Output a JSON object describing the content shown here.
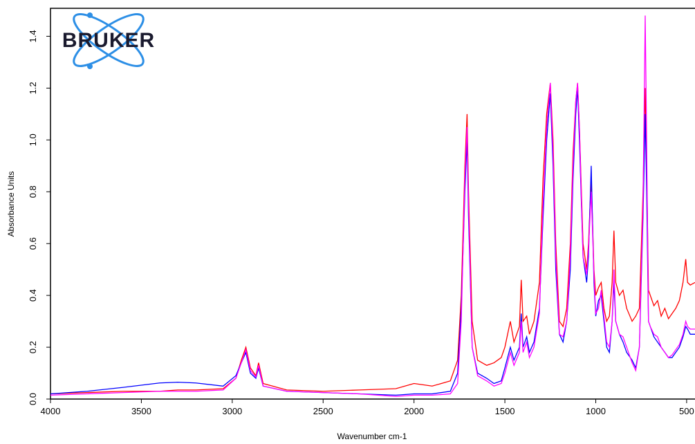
{
  "chart_data": {
    "type": "line",
    "logo": "BRUKER",
    "xlabel": "Wavenumber cm-1",
    "ylabel": "Absorbance Units",
    "x": [
      4000,
      3800,
      3600,
      3400,
      3300,
      3200,
      3050,
      2980,
      2950,
      2925,
      2900,
      2870,
      2855,
      2830,
      2700,
      2500,
      2300,
      2100,
      2000,
      1900,
      1800,
      1760,
      1740,
      1720,
      1708,
      1700,
      1680,
      1650,
      1600,
      1560,
      1520,
      1500,
      1470,
      1450,
      1420,
      1410,
      1400,
      1380,
      1365,
      1340,
      1310,
      1290,
      1270,
      1250,
      1235,
      1220,
      1200,
      1180,
      1160,
      1140,
      1125,
      1110,
      1100,
      1090,
      1070,
      1050,
      1040,
      1025,
      1010,
      1000,
      985,
      970,
      955,
      940,
      925,
      910,
      900,
      890,
      870,
      850,
      830,
      800,
      780,
      760,
      740,
      728,
      720,
      710,
      700,
      680,
      660,
      640,
      620,
      600,
      580,
      560,
      540,
      520,
      505,
      495,
      480,
      454
    ],
    "series": [
      {
        "color": "#ff0000",
        "values": [
          0.02,
          0.025,
          0.03,
          0.03,
          0.035,
          0.035,
          0.04,
          0.08,
          0.15,
          0.2,
          0.12,
          0.09,
          0.14,
          0.06,
          0.035,
          0.03,
          0.035,
          0.04,
          0.06,
          0.05,
          0.07,
          0.15,
          0.4,
          0.9,
          1.1,
          0.8,
          0.3,
          0.15,
          0.13,
          0.14,
          0.16,
          0.2,
          0.3,
          0.22,
          0.28,
          0.46,
          0.3,
          0.32,
          0.25,
          0.3,
          0.45,
          0.85,
          1.1,
          1.22,
          1.0,
          0.6,
          0.3,
          0.28,
          0.35,
          0.6,
          0.95,
          1.15,
          1.22,
          1.05,
          0.6,
          0.5,
          0.6,
          0.85,
          0.5,
          0.4,
          0.43,
          0.45,
          0.35,
          0.3,
          0.32,
          0.45,
          0.65,
          0.45,
          0.4,
          0.42,
          0.35,
          0.3,
          0.32,
          0.35,
          0.8,
          1.2,
          0.9,
          0.42,
          0.4,
          0.36,
          0.38,
          0.32,
          0.35,
          0.31,
          0.33,
          0.35,
          0.38,
          0.45,
          0.54,
          0.45,
          0.44,
          0.45
        ]
      },
      {
        "color": "#0000ff",
        "values": [
          0.02,
          0.03,
          0.045,
          0.062,
          0.065,
          0.062,
          0.05,
          0.09,
          0.14,
          0.18,
          0.1,
          0.08,
          0.12,
          0.05,
          0.03,
          0.025,
          0.02,
          0.015,
          0.02,
          0.02,
          0.03,
          0.1,
          0.35,
          0.8,
          1.0,
          0.7,
          0.2,
          0.1,
          0.08,
          0.06,
          0.07,
          0.12,
          0.2,
          0.15,
          0.2,
          0.33,
          0.2,
          0.24,
          0.18,
          0.22,
          0.35,
          0.7,
          1.0,
          1.18,
          0.9,
          0.5,
          0.25,
          0.22,
          0.3,
          0.5,
          0.85,
          1.1,
          1.2,
          1.0,
          0.55,
          0.45,
          0.55,
          0.9,
          0.45,
          0.32,
          0.38,
          0.4,
          0.3,
          0.2,
          0.18,
          0.3,
          0.45,
          0.3,
          0.25,
          0.22,
          0.18,
          0.15,
          0.12,
          0.2,
          0.7,
          1.1,
          0.8,
          0.3,
          0.28,
          0.24,
          0.22,
          0.2,
          0.18,
          0.16,
          0.16,
          0.18,
          0.2,
          0.24,
          0.28,
          0.27,
          0.25,
          0.25
        ]
      },
      {
        "color": "#ff00ff",
        "values": [
          0.015,
          0.02,
          0.025,
          0.03,
          0.03,
          0.03,
          0.035,
          0.08,
          0.14,
          0.19,
          0.11,
          0.085,
          0.13,
          0.05,
          0.03,
          0.025,
          0.02,
          0.01,
          0.015,
          0.015,
          0.02,
          0.06,
          0.3,
          0.85,
          1.05,
          0.75,
          0.2,
          0.09,
          0.07,
          0.05,
          0.06,
          0.1,
          0.18,
          0.13,
          0.18,
          0.3,
          0.18,
          0.22,
          0.16,
          0.2,
          0.33,
          0.75,
          1.05,
          1.22,
          0.95,
          0.55,
          0.25,
          0.24,
          0.3,
          0.55,
          0.9,
          1.15,
          1.22,
          1.05,
          0.55,
          0.48,
          0.58,
          0.8,
          0.48,
          0.33,
          0.35,
          0.42,
          0.32,
          0.22,
          0.2,
          0.3,
          0.5,
          0.3,
          0.25,
          0.24,
          0.2,
          0.14,
          0.11,
          0.2,
          0.75,
          1.48,
          1.0,
          0.3,
          0.28,
          0.25,
          0.24,
          0.2,
          0.18,
          0.16,
          0.17,
          0.19,
          0.21,
          0.25,
          0.3,
          0.28,
          0.27,
          0.27
        ]
      }
    ],
    "xlim": [
      4000,
      454
    ],
    "xticks": [
      4000,
      3500,
      3000,
      2500,
      2000,
      1500,
      1000,
      500
    ],
    "ylim": [
      0,
      1.5
    ],
    "yticks": [
      {
        "value": 0,
        "label": "0.0"
      },
      0.2,
      0.4,
      0.6,
      0.8,
      {
        "value": 1,
        "label": "1.0"
      },
      1.2,
      1.4
    ]
  }
}
